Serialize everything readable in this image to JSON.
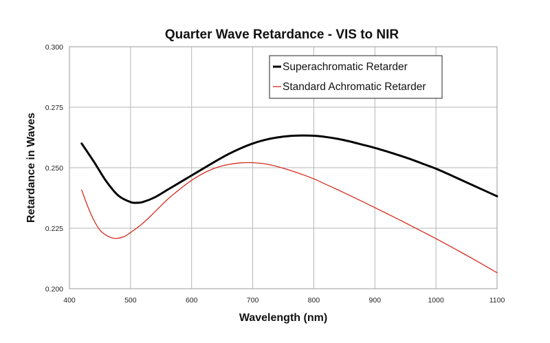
{
  "chart_data": {
    "type": "line",
    "title": "Quarter Wave Retardance - VIS to NIR",
    "xlabel": "Wavelength (nm)",
    "ylabel": "Retardance in Waves",
    "xlim": [
      400,
      1100
    ],
    "ylim": [
      0.2,
      0.3
    ],
    "x_ticks": [
      "400",
      "500",
      "600",
      "700",
      "800",
      "900",
      "1000",
      "1100"
    ],
    "y_ticks": [
      "0.200",
      "0.225",
      "0.250",
      "0.275",
      "0.300"
    ],
    "grid": true,
    "legend_position": "top-right",
    "series": [
      {
        "name": "Superachromatic Retarder",
        "color": "#000000",
        "x": [
          420,
          440,
          460,
          480,
          500,
          510,
          520,
          540,
          560,
          580,
          600,
          620,
          640,
          660,
          680,
          700,
          720,
          740,
          760,
          780,
          800,
          820,
          840,
          860,
          880,
          900,
          920,
          940,
          960,
          980,
          1000,
          1020,
          1040,
          1060,
          1080,
          1100
        ],
        "values": [
          0.26,
          0.2525,
          0.2445,
          0.2385,
          0.2358,
          0.2355,
          0.2358,
          0.2378,
          0.2408,
          0.2438,
          0.2468,
          0.2498,
          0.2528,
          0.2556,
          0.258,
          0.26,
          0.2615,
          0.2625,
          0.2631,
          0.2633,
          0.2632,
          0.2627,
          0.2619,
          0.2608,
          0.2595,
          0.2582,
          0.2567,
          0.2551,
          0.2534,
          0.2515,
          0.2496,
          0.2474,
          0.2451,
          0.2428,
          0.2405,
          0.2382
        ]
      },
      {
        "name": "Standard Achromatic Retarder",
        "color": "#d42b1e",
        "x": [
          420,
          430,
          440,
          450,
          460,
          470,
          478,
          490,
          500,
          520,
          540,
          560,
          580,
          600,
          620,
          640,
          660,
          680,
          700,
          720,
          740,
          760,
          780,
          800,
          820,
          840,
          860,
          880,
          900,
          920,
          940,
          960,
          980,
          1000,
          1020,
          1040,
          1060,
          1080,
          1100
        ],
        "values": [
          0.2408,
          0.234,
          0.2283,
          0.2242,
          0.2221,
          0.221,
          0.2208,
          0.2216,
          0.2232,
          0.227,
          0.2318,
          0.2368,
          0.241,
          0.2448,
          0.2478,
          0.25,
          0.2513,
          0.252,
          0.2521,
          0.2516,
          0.2505,
          0.249,
          0.2473,
          0.2454,
          0.2431,
          0.2408,
          0.2384,
          0.236,
          0.2335,
          0.231,
          0.2285,
          0.2259,
          0.2233,
          0.2207,
          0.218,
          0.2152,
          0.2124,
          0.2095,
          0.2066
        ]
      }
    ]
  }
}
